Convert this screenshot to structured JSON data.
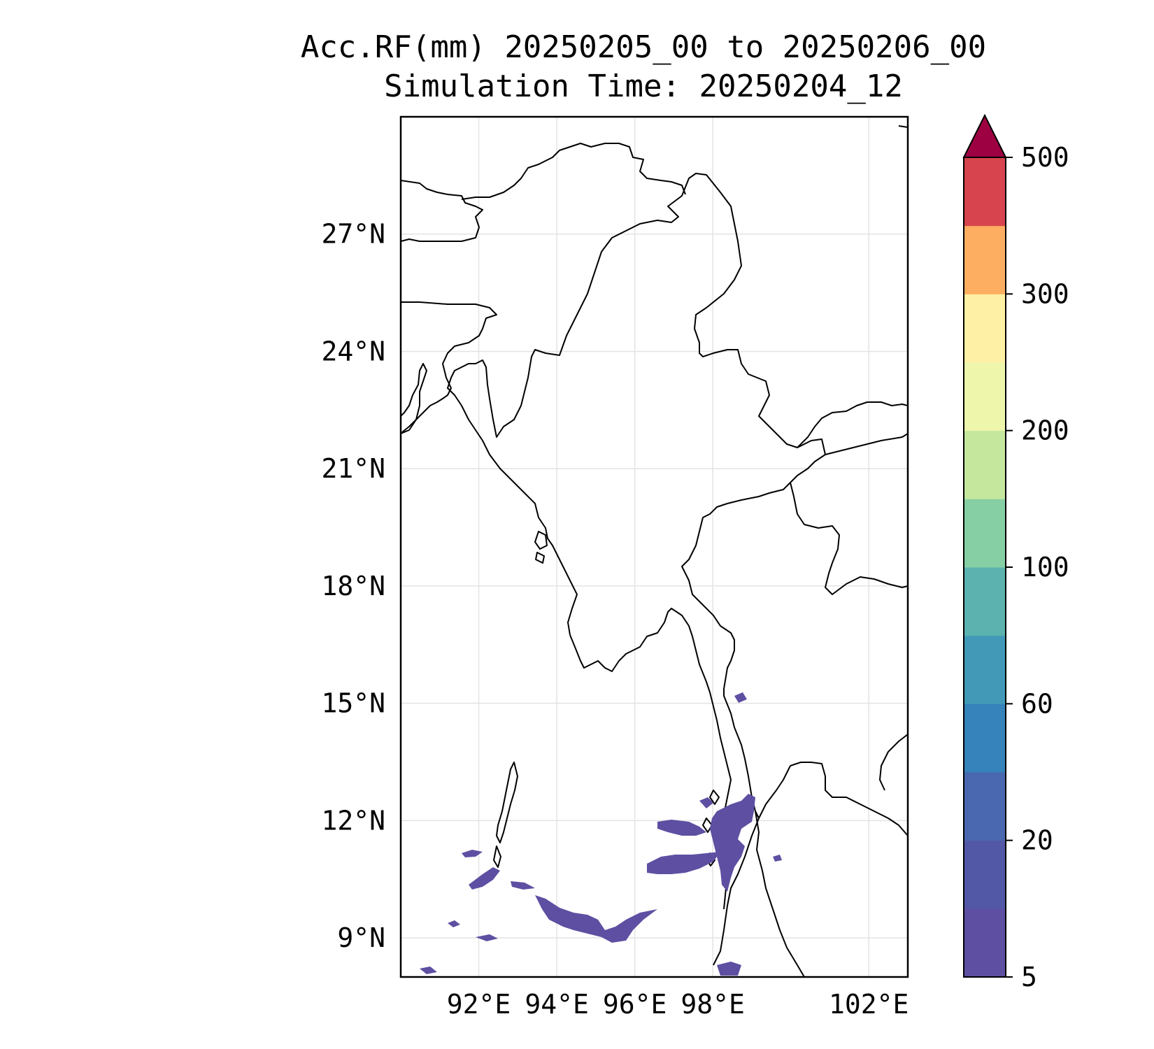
{
  "title": "Acc.RF(mm) 20250205_00 to 20250206_00",
  "subtitle": "Simulation Time: 20250204_12",
  "map": {
    "lon_range": [
      90.0,
      103.0
    ],
    "lat_range": [
      8.0,
      30.0
    ],
    "lat_ticks": [
      {
        "value": 27,
        "label": "27°N"
      },
      {
        "value": 24,
        "label": "24°N"
      },
      {
        "value": 21,
        "label": "21°N"
      },
      {
        "value": 18,
        "label": "18°N"
      },
      {
        "value": 15,
        "label": "15°N"
      },
      {
        "value": 12,
        "label": "12°N"
      },
      {
        "value": 9,
        "label": "9°N"
      }
    ],
    "lon_ticks": [
      {
        "value": 92,
        "label": "92°E"
      },
      {
        "value": 94,
        "label": "94°E"
      },
      {
        "value": 96,
        "label": "96°E"
      },
      {
        "value": 98,
        "label": "98°E"
      },
      {
        "value": 102,
        "label": "102°E"
      }
    ],
    "grid": true,
    "boundary_color": "#000000"
  },
  "colorbar": {
    "levels": [
      5,
      10,
      20,
      40,
      60,
      80,
      100,
      150,
      200,
      250,
      300,
      400,
      500
    ],
    "colors": [
      "#5e4fa2",
      "#5258a5",
      "#4968af",
      "#3682ba",
      "#4199b7",
      "#5bb2ae",
      "#86cfa5",
      "#c4e69d",
      "#eef6ac",
      "#fef0a4",
      "#fdae61",
      "#d7444e"
    ],
    "extend_color": "#9e0142",
    "tick_labels": [
      {
        "value": 5,
        "label": "5"
      },
      {
        "value": 20,
        "label": "20"
      },
      {
        "value": 60,
        "label": "60"
      },
      {
        "value": 100,
        "label": "100"
      },
      {
        "value": 200,
        "label": "200"
      },
      {
        "value": 300,
        "label": "300"
      },
      {
        "value": 500,
        "label": "500"
      }
    ]
  },
  "rain_color": "#5e4fa2"
}
